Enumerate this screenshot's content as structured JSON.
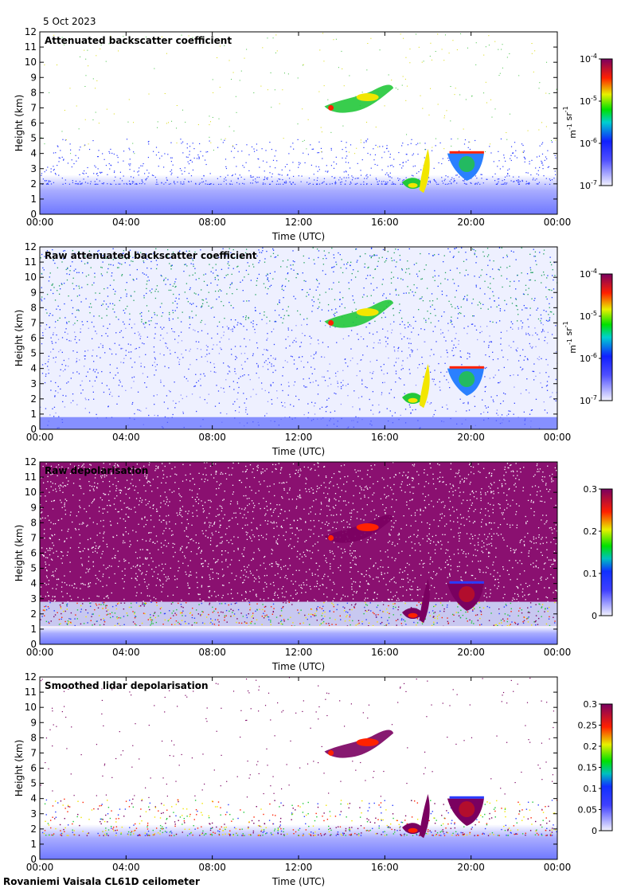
{
  "date": "5 Oct 2023",
  "footer": "Rovaniemi Vaisala CL61D ceilometer",
  "colors": {
    "background_low": "#f5f5ff",
    "blue": "#2a3cff",
    "green": "#22c83a",
    "yellow": "#f2e600",
    "red": "#ff2200",
    "purple": "#7a0060"
  },
  "chart_data": [
    {
      "type": "heatmap",
      "title": "Attenuated backscatter coefficient",
      "xlabel": "Time (UTC)",
      "ylabel": "Height (km)",
      "xticks": [
        "00:00",
        "04:00",
        "08:00",
        "12:00",
        "16:00",
        "20:00",
        "00:00"
      ],
      "yticks": [
        0,
        1,
        2,
        3,
        4,
        5,
        6,
        7,
        8,
        9,
        10,
        11,
        12
      ],
      "ylim": [
        0,
        12
      ],
      "xlim_hours": [
        0,
        24
      ],
      "colorbar": {
        "scale": "log",
        "ticks": [
          "10^-7",
          "10^-6",
          "10^-5",
          "10^-4"
        ],
        "label": "m^-1 sr^-1"
      },
      "features": [
        {
          "name": "boundary layer",
          "t_start": 0,
          "t_end": 24,
          "z_top": 2.5
        },
        {
          "name": "cirrus cloud",
          "t_start": 13.0,
          "t_end": 16.5,
          "z_min": 6.7,
          "z_max": 8.6
        },
        {
          "name": "falling cloud",
          "t_start": 16.8,
          "t_end": 18.1,
          "z_min": 1.4,
          "z_max": 4.2
        },
        {
          "name": "mid cloud",
          "t_start": 18.9,
          "t_end": 20.6,
          "z_min": 2.2,
          "z_max": 4.2
        }
      ]
    },
    {
      "type": "heatmap",
      "title": "Raw attenuated backscatter coefficient",
      "xlabel": "Time (UTC)",
      "ylabel": "Height (km)",
      "xticks": [
        "00:00",
        "04:00",
        "08:00",
        "12:00",
        "16:00",
        "20:00",
        "00:00"
      ],
      "yticks": [
        0,
        1,
        2,
        3,
        4,
        5,
        6,
        7,
        8,
        9,
        10,
        11,
        12
      ],
      "ylim": [
        0,
        12
      ],
      "xlim_hours": [
        0,
        24
      ],
      "colorbar": {
        "scale": "log",
        "ticks": [
          "10^-7",
          "10^-6",
          "10^-5",
          "10^-4"
        ],
        "label": "m^-1 sr^-1"
      }
    },
    {
      "type": "heatmap",
      "title": "Raw depolarisation",
      "xlabel": "Time (UTC)",
      "ylabel": "Height (km)",
      "xticks": [
        "00:00",
        "04:00",
        "08:00",
        "12:00",
        "16:00",
        "20:00",
        "00:00"
      ],
      "yticks": [
        0,
        1,
        2,
        3,
        4,
        5,
        6,
        7,
        8,
        9,
        10,
        11,
        12
      ],
      "ylim": [
        0,
        12
      ],
      "xlim_hours": [
        0,
        24
      ],
      "colorbar": {
        "scale": "linear",
        "ticks": [
          "0",
          "0.1",
          "0.2",
          "0.3"
        ],
        "label": ""
      }
    },
    {
      "type": "heatmap",
      "title": "Smoothed lidar depolarisation",
      "xlabel": "Time (UTC)",
      "ylabel": "Height (km)",
      "xticks": [
        "00:00",
        "04:00",
        "08:00",
        "12:00",
        "16:00",
        "20:00",
        "00:00"
      ],
      "yticks": [
        0,
        1,
        2,
        3,
        4,
        5,
        6,
        7,
        8,
        9,
        10,
        11,
        12
      ],
      "ylim": [
        0,
        12
      ],
      "xlim_hours": [
        0,
        24
      ],
      "colorbar": {
        "scale": "linear",
        "ticks": [
          "0",
          "0.05",
          "0.1",
          "0.15",
          "0.2",
          "0.25",
          "0.3"
        ],
        "label": ""
      }
    }
  ]
}
